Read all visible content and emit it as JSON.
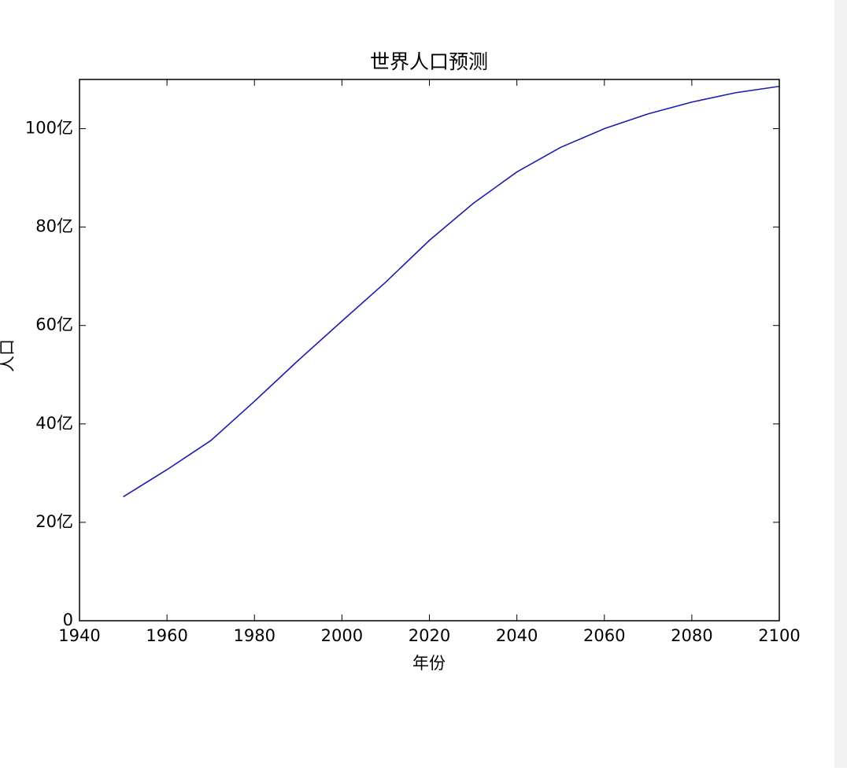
{
  "chart_data": {
    "type": "line",
    "title": "世界人口预测",
    "x_label": "年份",
    "y_label": "人口",
    "x": [
      1950,
      1960,
      1970,
      1980,
      1990,
      2000,
      2010,
      2020,
      2030,
      2040,
      2050,
      2060,
      2070,
      2080,
      2090,
      2100
    ],
    "series": [
      {
        "name": "人口",
        "color": "#1c1cb0",
        "values": [
          25.2,
          30.7,
          36.6,
          44.6,
          52.9,
          60.9,
          68.8,
          77.3,
          84.8,
          91.2,
          96.2,
          100,
          103,
          105.4,
          107.3,
          108.6
        ]
      }
    ],
    "xlim": [
      1940,
      2100
    ],
    "xticks": [
      1940,
      1960,
      1980,
      2000,
      2020,
      2040,
      2060,
      2080,
      2100
    ],
    "ylim": [
      0,
      110
    ],
    "yticks": [
      0,
      {
        "value": 20,
        "label": "20亿"
      },
      {
        "value": 40,
        "label": "40亿"
      },
      {
        "value": 60,
        "label": "60亿"
      },
      {
        "value": 80,
        "label": "80亿"
      },
      {
        "value": 100,
        "label": "100亿"
      }
    ],
    "grid": false
  }
}
